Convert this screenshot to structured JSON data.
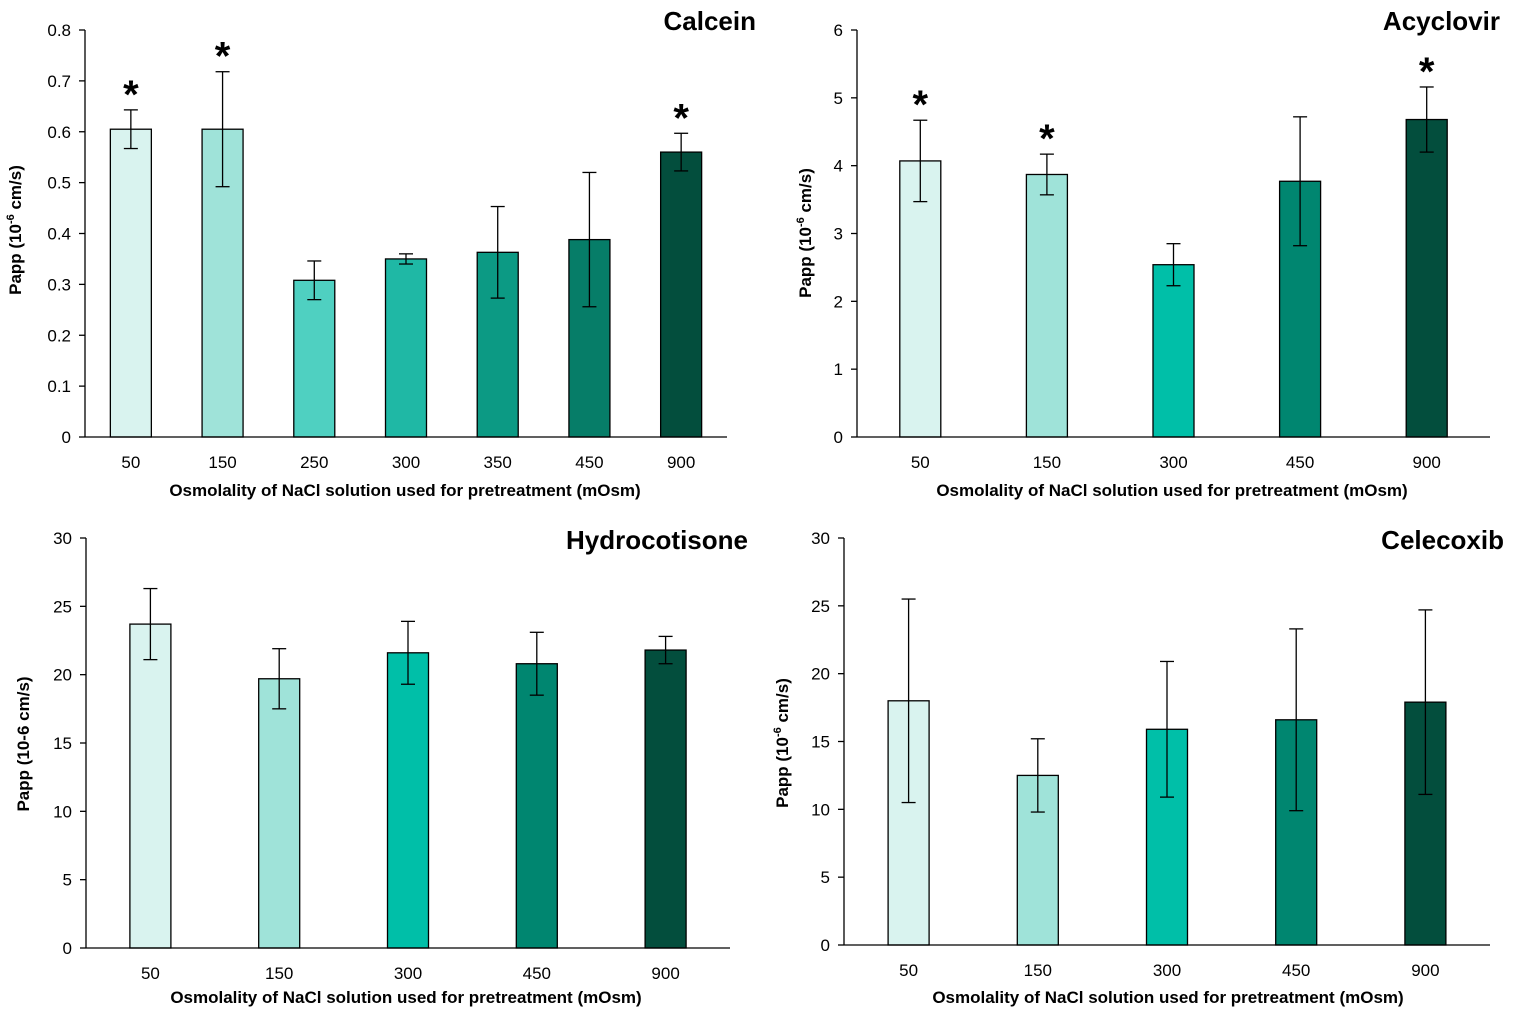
{
  "chart_data": [
    {
      "type": "bar",
      "title": "Calcein",
      "xlabel": "Osmolality of NaCl solution used for pretreatment (mOsm)",
      "ylabel_main": "Papp (10",
      "ylabel_sup": "-6",
      "ylabel_tail": " cm/s)",
      "ylim": [
        0,
        0.8
      ],
      "yticks": [
        "0",
        "0.1",
        "0.2",
        "0.3",
        "0.4",
        "0.5",
        "0.6",
        "0.7",
        "0.8"
      ],
      "categories": [
        "50",
        "150",
        "250",
        "300",
        "350",
        "450",
        "900"
      ],
      "values": [
        0.605,
        0.605,
        0.308,
        0.35,
        0.363,
        0.388,
        0.56
      ],
      "errors": [
        0.038,
        0.113,
        0.038,
        0.01,
        0.09,
        0.132,
        0.037
      ],
      "significant": [
        true,
        true,
        false,
        false,
        false,
        false,
        true
      ],
      "star_label": "*",
      "colors": [
        "#d9f3ef",
        "#9fe3d9",
        "#4fd0c1",
        "#1fb8a5",
        "#0c9a84",
        "#067d68",
        "#034e3d"
      ]
    },
    {
      "type": "bar",
      "title": "Acyclovir",
      "xlabel": "Osmolality of NaCl solution used for pretreatment (mOsm)",
      "ylabel_main": "Papp (10",
      "ylabel_sup": "-6",
      "ylabel_tail": " cm/s)",
      "ylim": [
        0,
        6
      ],
      "yticks": [
        "0",
        "1",
        "2",
        "3",
        "4",
        "5",
        "6"
      ],
      "categories": [
        "50",
        "150",
        "300",
        "450",
        "900"
      ],
      "values": [
        4.07,
        3.87,
        2.54,
        3.77,
        4.68
      ],
      "errors": [
        0.6,
        0.3,
        0.31,
        0.95,
        0.48
      ],
      "significant": [
        true,
        true,
        false,
        false,
        true
      ],
      "star_label": "*",
      "colors": [
        "#d9f3ef",
        "#9fe3d9",
        "#00bfa8",
        "#008670",
        "#034e3d"
      ]
    },
    {
      "type": "bar",
      "title": "Hydrocotisone",
      "xlabel": "Osmolality of NaCl solution used for pretreatment (mOsm)",
      "ylabel_main": "Papp (10-6 cm/s)",
      "ylabel_sup": "",
      "ylabel_tail": "",
      "ylim": [
        0,
        30
      ],
      "yticks": [
        "0",
        "5",
        "10",
        "15",
        "20",
        "25",
        "30"
      ],
      "categories": [
        "50",
        "150",
        "300",
        "450",
        "900"
      ],
      "values": [
        23.7,
        19.7,
        21.6,
        20.8,
        21.8
      ],
      "errors": [
        2.6,
        2.2,
        2.3,
        2.3,
        1.0
      ],
      "significant": [
        false,
        false,
        false,
        false,
        false
      ],
      "star_label": "*",
      "colors": [
        "#d9f3ef",
        "#9fe3d9",
        "#00bfa8",
        "#008670",
        "#034e3d"
      ]
    },
    {
      "type": "bar",
      "title": "Celecoxib",
      "xlabel": "Osmolality of NaCl solution used for pretreatment (mOsm)",
      "ylabel_main": "Papp (10",
      "ylabel_sup": "-6",
      "ylabel_tail": " cm/s)",
      "ylim": [
        0,
        30
      ],
      "yticks": [
        "0",
        "5",
        "10",
        "15",
        "20",
        "25",
        "30"
      ],
      "categories": [
        "50",
        "150",
        "300",
        "450",
        "900"
      ],
      "values": [
        18.0,
        12.5,
        15.9,
        16.6,
        17.9
      ],
      "errors": [
        7.5,
        2.7,
        5.0,
        6.7,
        6.8
      ],
      "significant": [
        false,
        false,
        false,
        false,
        false
      ],
      "star_label": "*",
      "colors": [
        "#d9f3ef",
        "#9fe3d9",
        "#00bfa8",
        "#008670",
        "#034e3d"
      ]
    }
  ]
}
